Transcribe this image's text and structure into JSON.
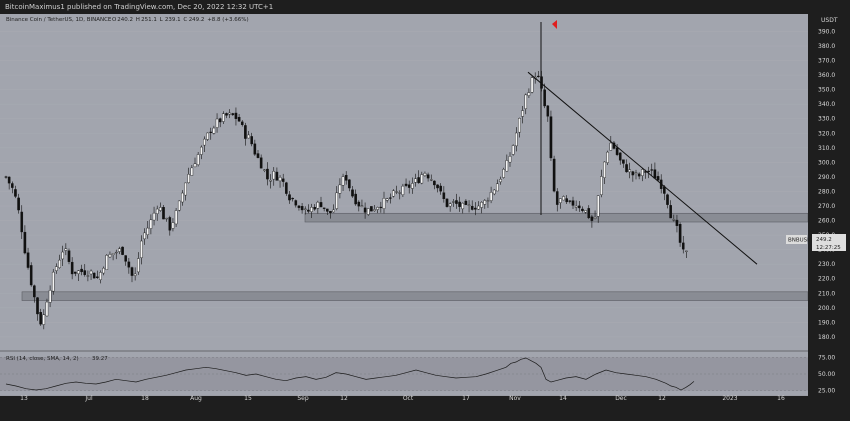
{
  "publisher_line": "BitcoinMaximus1 published on TradingView.com, Dec 20, 2022 12:32 UTC+1",
  "chart_data": {
    "type": "candlestick",
    "title": "Binance Coin / TetherUS, 1D, BINANCE",
    "ohlc_header": [
      "O",
      "240.2",
      "H",
      "251.1",
      "L",
      "239.1",
      "C",
      "249.2",
      "+8.8 (+3.66%)"
    ],
    "currency": "USDT",
    "ylim": [
      171,
      402
    ],
    "yticks": [
      180,
      190,
      200,
      210,
      220,
      230,
      240,
      250,
      260,
      270,
      280,
      290,
      300,
      310,
      320,
      330,
      340,
      350,
      360,
      370,
      380,
      390
    ],
    "x_tick_labels": [
      "13",
      "Jul",
      "18",
      "Aug",
      "15",
      "Sep",
      "12",
      "Oct",
      "17",
      "Nov",
      "14",
      "Dec",
      "12",
      "2023",
      "16"
    ],
    "price_label": {
      "symbol": "BNBUSDT",
      "price": "249.2",
      "countdown": "12:27:25",
      "value": 249.2
    },
    "support_zones": [
      {
        "low": 259,
        "high": 265
      },
      {
        "low": 205,
        "high": 211
      }
    ],
    "trendline": {
      "from": 362,
      "to": 230
    },
    "candle_keypoints": [
      [
        0,
        290
      ],
      [
        8,
        280
      ],
      [
        14,
        262
      ],
      [
        20,
        235
      ],
      [
        26,
        215
      ],
      [
        32,
        195
      ],
      [
        36,
        188
      ],
      [
        42,
        210
      ],
      [
        50,
        228
      ],
      [
        58,
        242
      ],
      [
        66,
        225
      ],
      [
        76,
        225
      ],
      [
        84,
        225
      ],
      [
        92,
        220
      ],
      [
        100,
        234
      ],
      [
        108,
        238
      ],
      [
        116,
        240
      ],
      [
        122,
        230
      ],
      [
        128,
        218
      ],
      [
        136,
        248
      ],
      [
        144,
        258
      ],
      [
        152,
        272
      ],
      [
        158,
        262
      ],
      [
        164,
        255
      ],
      [
        172,
        268
      ],
      [
        180,
        288
      ],
      [
        188,
        300
      ],
      [
        196,
        310
      ],
      [
        204,
        322
      ],
      [
        212,
        328
      ],
      [
        220,
        332
      ],
      [
        228,
        332
      ],
      [
        234,
        328
      ],
      [
        238,
        320
      ],
      [
        244,
        316
      ],
      [
        250,
        305
      ],
      [
        256,
        298
      ],
      [
        262,
        288
      ],
      [
        268,
        292
      ],
      [
        276,
        288
      ],
      [
        284,
        276
      ],
      [
        292,
        272
      ],
      [
        300,
        265
      ],
      [
        308,
        270
      ],
      [
        316,
        272
      ],
      [
        322,
        264
      ],
      [
        328,
        268
      ],
      [
        334,
        286
      ],
      [
        340,
        290
      ],
      [
        346,
        278
      ],
      [
        352,
        272
      ],
      [
        358,
        268
      ],
      [
        364,
        267
      ],
      [
        370,
        270
      ],
      [
        376,
        272
      ],
      [
        382,
        274
      ],
      [
        388,
        278
      ],
      [
        394,
        280
      ],
      [
        400,
        282
      ],
      [
        406,
        285
      ],
      [
        412,
        288
      ],
      [
        418,
        294
      ],
      [
        424,
        290
      ],
      [
        430,
        286
      ],
      [
        436,
        276
      ],
      [
        442,
        270
      ],
      [
        448,
        272
      ],
      [
        454,
        270
      ],
      [
        460,
        268
      ],
      [
        466,
        270
      ],
      [
        472,
        270
      ],
      [
        478,
        272
      ],
      [
        484,
        278
      ],
      [
        490,
        284
      ],
      [
        496,
        292
      ],
      [
        502,
        300
      ],
      [
        508,
        314
      ],
      [
        514,
        330
      ],
      [
        520,
        346
      ],
      [
        526,
        356
      ],
      [
        530,
        362
      ],
      [
        534,
        354
      ],
      [
        538,
        340
      ],
      [
        542,
        330
      ],
      [
        546,
        290
      ],
      [
        550,
        270
      ],
      [
        556,
        275
      ],
      [
        562,
        270
      ],
      [
        568,
        272
      ],
      [
        574,
        270
      ],
      [
        580,
        266
      ],
      [
        584,
        262
      ],
      [
        588,
        258
      ],
      [
        592,
        275
      ],
      [
        596,
        292
      ],
      [
        600,
        305
      ],
      [
        604,
        314
      ],
      [
        608,
        310
      ],
      [
        612,
        304
      ],
      [
        616,
        298
      ],
      [
        620,
        296
      ],
      [
        626,
        292
      ],
      [
        632,
        290
      ],
      [
        638,
        294
      ],
      [
        644,
        294
      ],
      [
        650,
        290
      ],
      [
        656,
        284
      ],
      [
        660,
        278
      ],
      [
        664,
        266
      ],
      [
        668,
        258
      ],
      [
        672,
        252
      ],
      [
        676,
        238
      ],
      [
        680,
        236
      ],
      [
        684,
        246
      ],
      [
        688,
        249.2
      ]
    ],
    "rsi": {
      "label": "RSI (14, close, SMA, 14, 2)",
      "value": "39.27",
      "ylim": [
        20,
        80
      ],
      "yticks": [
        25,
        50,
        75
      ],
      "keypoints": [
        [
          0,
          35
        ],
        [
          10,
          32
        ],
        [
          20,
          28
        ],
        [
          30,
          26
        ],
        [
          40,
          28
        ],
        [
          50,
          32
        ],
        [
          60,
          36
        ],
        [
          70,
          38
        ],
        [
          80,
          36
        ],
        [
          90,
          35
        ],
        [
          100,
          38
        ],
        [
          110,
          42
        ],
        [
          120,
          40
        ],
        [
          130,
          38
        ],
        [
          140,
          42
        ],
        [
          150,
          45
        ],
        [
          160,
          48
        ],
        [
          170,
          52
        ],
        [
          180,
          56
        ],
        [
          190,
          58
        ],
        [
          200,
          60
        ],
        [
          210,
          58
        ],
        [
          220,
          55
        ],
        [
          230,
          52
        ],
        [
          240,
          48
        ],
        [
          250,
          50
        ],
        [
          260,
          46
        ],
        [
          270,
          42
        ],
        [
          280,
          40
        ],
        [
          290,
          44
        ],
        [
          300,
          46
        ],
        [
          310,
          42
        ],
        [
          320,
          45
        ],
        [
          330,
          52
        ],
        [
          340,
          50
        ],
        [
          350,
          46
        ],
        [
          360,
          42
        ],
        [
          370,
          44
        ],
        [
          380,
          46
        ],
        [
          390,
          48
        ],
        [
          400,
          52
        ],
        [
          410,
          56
        ],
        [
          420,
          52
        ],
        [
          430,
          48
        ],
        [
          440,
          46
        ],
        [
          450,
          44
        ],
        [
          460,
          45
        ],
        [
          470,
          46
        ],
        [
          480,
          50
        ],
        [
          490,
          55
        ],
        [
          500,
          60
        ],
        [
          505,
          66
        ],
        [
          510,
          68
        ],
        [
          515,
          72
        ],
        [
          520,
          74
        ],
        [
          525,
          70
        ],
        [
          530,
          66
        ],
        [
          535,
          60
        ],
        [
          540,
          42
        ],
        [
          545,
          38
        ],
        [
          550,
          40
        ],
        [
          560,
          44
        ],
        [
          570,
          46
        ],
        [
          580,
          42
        ],
        [
          590,
          50
        ],
        [
          600,
          56
        ],
        [
          610,
          52
        ],
        [
          620,
          50
        ],
        [
          630,
          48
        ],
        [
          640,
          46
        ],
        [
          650,
          42
        ],
        [
          660,
          36
        ],
        [
          665,
          32
        ],
        [
          670,
          30
        ],
        [
          675,
          26
        ],
        [
          680,
          30
        ],
        [
          684,
          34
        ],
        [
          688,
          39
        ]
      ]
    }
  }
}
